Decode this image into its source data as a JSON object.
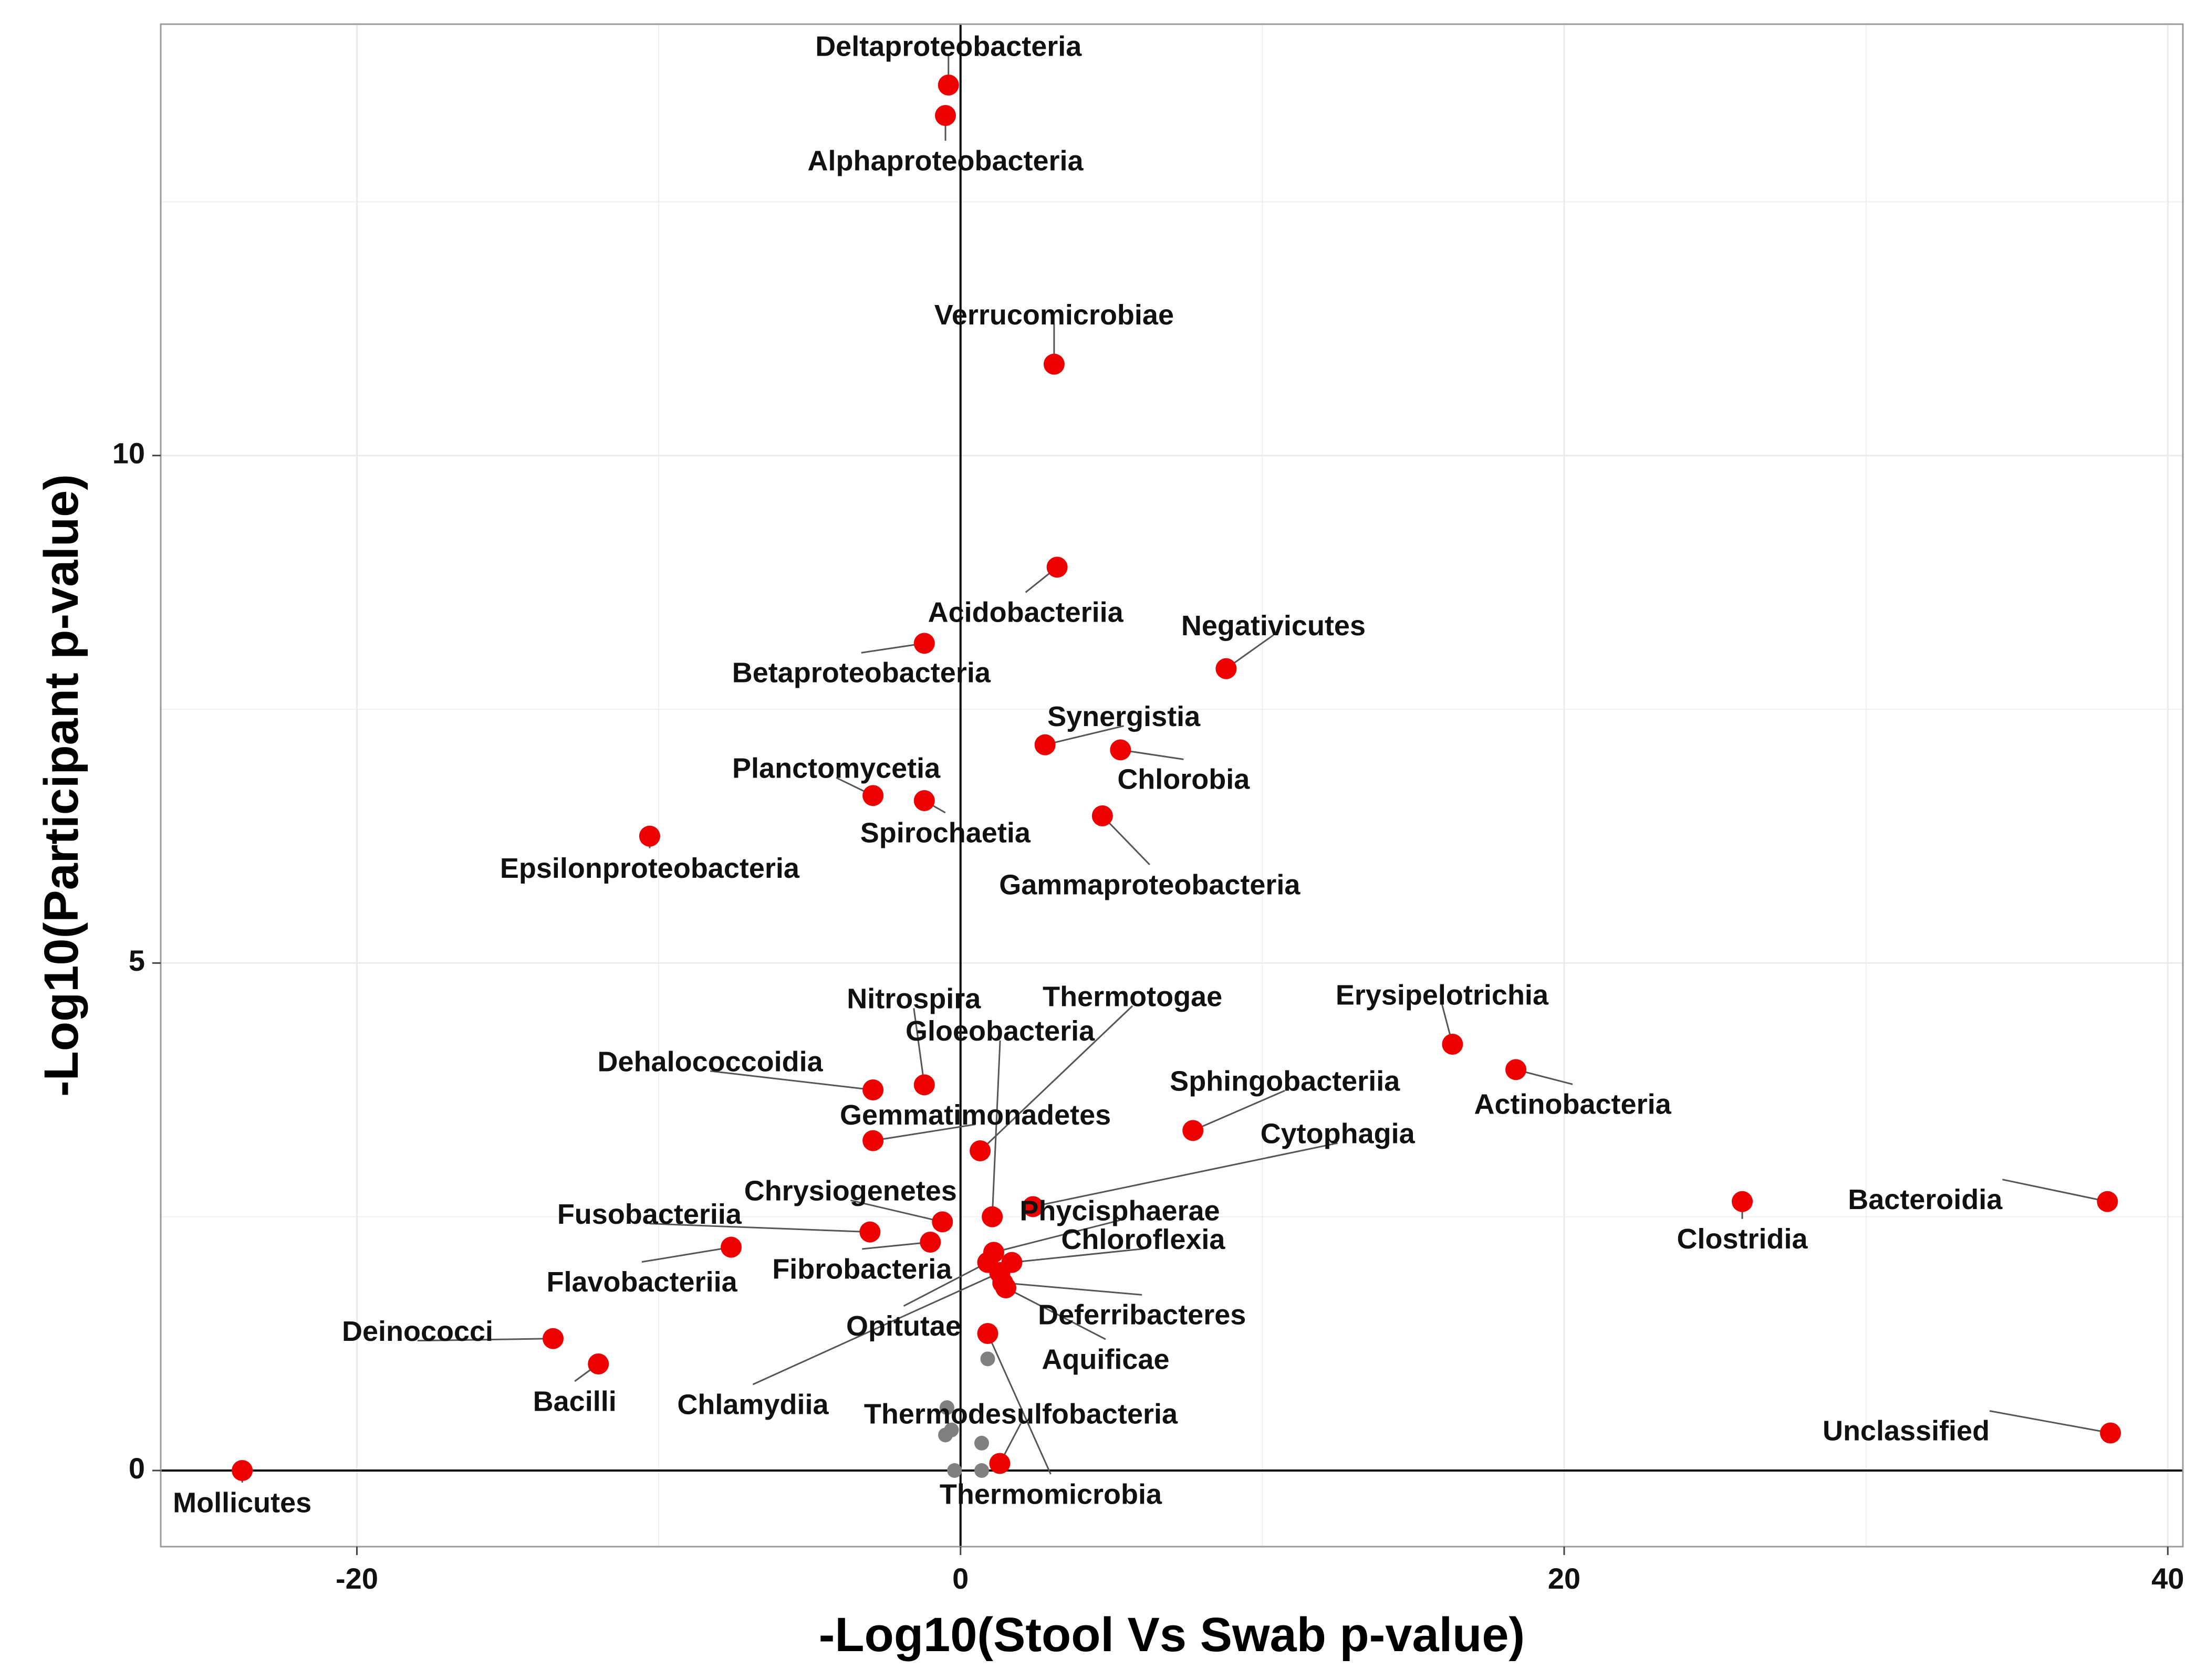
{
  "chart_data": {
    "type": "scatter",
    "title": "",
    "xlabel": "-Log10(Stool Vs Swab p-value)",
    "ylabel": "-Log10(Participant p-value)",
    "xlim": [
      -26.5,
      40.5
    ],
    "ylim": [
      -0.75,
      14.25
    ],
    "x_ticks": [
      -20,
      0,
      20,
      40
    ],
    "y_ticks": [
      0,
      5,
      10
    ],
    "x_tick_labels": [
      "-20",
      "0",
      "20",
      "40"
    ],
    "y_tick_labels": [
      "0",
      "5",
      "10"
    ],
    "grid": true,
    "reference_lines": {
      "x": 0,
      "y": 0
    },
    "colors": {
      "significant": "#ee0000",
      "not_significant": "#808080",
      "grid": "#ebebeb",
      "panel_border": "#9a9a9a"
    },
    "points": [
      {
        "label": "Deltaproteobacteria",
        "x": -0.4,
        "y": 13.65,
        "significant": true
      },
      {
        "label": "Alphaproteobacteria",
        "x": -0.5,
        "y": 13.35,
        "significant": true
      },
      {
        "label": "Verrucomicrobiae",
        "x": 3.1,
        "y": 10.9,
        "significant": true
      },
      {
        "label": "Acidobacteriia",
        "x": 3.2,
        "y": 8.9,
        "significant": true
      },
      {
        "label": "Negativicutes",
        "x": 8.8,
        "y": 7.9,
        "significant": true
      },
      {
        "label": "Betaproteobacteria",
        "x": -1.2,
        "y": 8.15,
        "significant": true
      },
      {
        "label": "Synergistia",
        "x": 2.8,
        "y": 7.15,
        "significant": true
      },
      {
        "label": "Chlorobia",
        "x": 5.3,
        "y": 7.1,
        "significant": true
      },
      {
        "label": "Planctomycetia",
        "x": -2.9,
        "y": 6.65,
        "significant": true
      },
      {
        "label": "Spirochaetia",
        "x": -1.2,
        "y": 6.6,
        "significant": true
      },
      {
        "label": "Gammaproteobacteria",
        "x": 4.7,
        "y": 6.45,
        "significant": true
      },
      {
        "label": "Epsilonproteobacteria",
        "x": -10.3,
        "y": 6.25,
        "significant": true
      },
      {
        "label": "Erysipelotrichia",
        "x": 16.3,
        "y": 4.2,
        "significant": true
      },
      {
        "label": "Actinobacteria",
        "x": 18.4,
        "y": 3.95,
        "significant": true
      },
      {
        "label": "Nitrospira",
        "x": -1.2,
        "y": 3.8,
        "significant": true
      },
      {
        "label": "Dehalococcoidia",
        "x": -2.9,
        "y": 3.75,
        "significant": true
      },
      {
        "label": "Sphingobacteriia",
        "x": 7.7,
        "y": 3.35,
        "significant": true
      },
      {
        "label": "Gemmatimonadetes",
        "x": -2.9,
        "y": 3.25,
        "significant": true
      },
      {
        "label": "Thermotogae",
        "x": 0.65,
        "y": 3.15,
        "significant": true
      },
      {
        "label": "Bacteroidia",
        "x": 38.0,
        "y": 2.65,
        "significant": true
      },
      {
        "label": "Clostridia",
        "x": 25.9,
        "y": 2.65,
        "significant": true
      },
      {
        "label": "Cytophagia",
        "x": 2.4,
        "y": 2.6,
        "significant": true
      },
      {
        "label": "Gloeobacteria",
        "x": 1.05,
        "y": 2.5,
        "significant": true
      },
      {
        "label": "Chrysiogenetes",
        "x": -0.6,
        "y": 2.45,
        "significant": true
      },
      {
        "label": "Fusobacteriia",
        "x": -3.0,
        "y": 2.35,
        "significant": true
      },
      {
        "label": "Fibrobacteria",
        "x": -1.0,
        "y": 2.25,
        "significant": true
      },
      {
        "label": "Flavobacteriia",
        "x": -7.6,
        "y": 2.2,
        "significant": true
      },
      {
        "label": "Phycisphaerae",
        "x": 1.1,
        "y": 2.15,
        "significant": true
      },
      {
        "label": "Chloroflexia",
        "x": 1.7,
        "y": 2.05,
        "significant": true
      },
      {
        "label": "Opitutae",
        "x": 0.9,
        "y": 2.05,
        "significant": true
      },
      {
        "label": "Chlamydiia",
        "x": 1.3,
        "y": 1.95,
        "significant": true
      },
      {
        "label": "Deferribacteres",
        "x": 1.4,
        "y": 1.85,
        "significant": true
      },
      {
        "label": "Aquificae",
        "x": 1.5,
        "y": 1.8,
        "significant": true
      },
      {
        "label": "Thermomicrobia",
        "x": 0.9,
        "y": 1.35,
        "significant": true
      },
      {
        "label": "Deinococci",
        "x": -13.5,
        "y": 1.3,
        "significant": true
      },
      {
        "label": "Bacilli",
        "x": -12.0,
        "y": 1.05,
        "significant": true
      },
      {
        "label": "Unclassified",
        "x": 38.1,
        "y": 0.37,
        "significant": true
      },
      {
        "label": "Thermodesulfobacteria",
        "x": 1.3,
        "y": 0.07,
        "significant": true
      },
      {
        "label": "Mollicutes",
        "x": -23.8,
        "y": 0.0,
        "significant": true
      },
      {
        "label": "",
        "x": 0.9,
        "y": 1.1,
        "significant": false
      },
      {
        "label": "",
        "x": -0.45,
        "y": 0.62,
        "significant": false
      },
      {
        "label": "",
        "x": -0.3,
        "y": 0.4,
        "significant": false
      },
      {
        "label": "",
        "x": -0.5,
        "y": 0.35,
        "significant": false
      },
      {
        "label": "",
        "x": 0.7,
        "y": 0.27,
        "significant": false
      },
      {
        "label": "",
        "x": -0.2,
        "y": 0.0,
        "significant": false
      },
      {
        "label": "",
        "x": 0.7,
        "y": 0.0,
        "significant": false
      }
    ]
  }
}
